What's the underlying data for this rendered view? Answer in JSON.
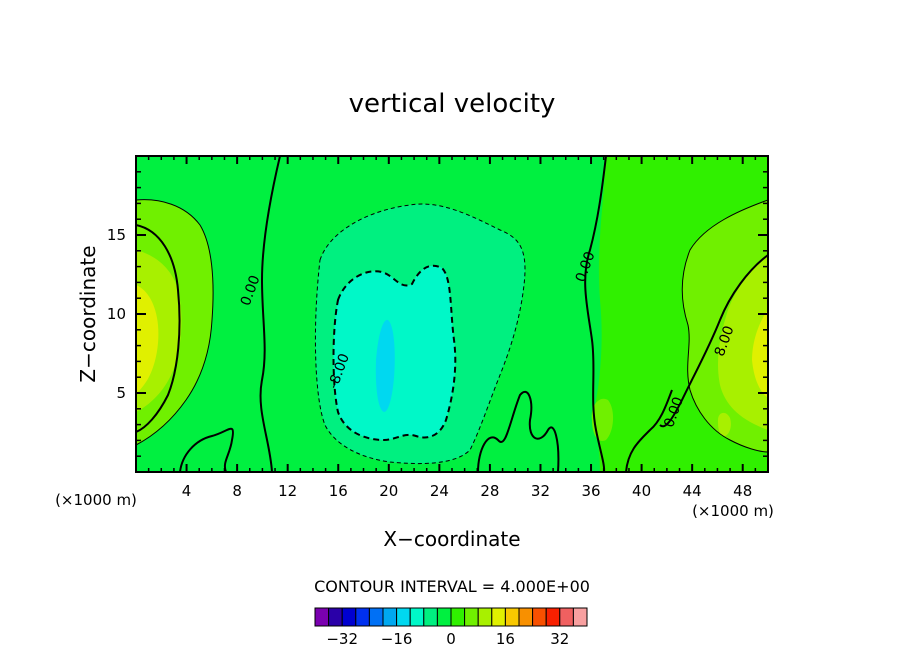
{
  "chart_data": {
    "type": "heatmap",
    "title": "vertical velocity",
    "xlabel": "X−coordinate",
    "ylabel": "Z−coordinate",
    "x_unit_left": "(×1000 m)",
    "x_unit_right": "(×1000 m)",
    "xlim": [
      0,
      50
    ],
    "ylim": [
      0,
      20
    ],
    "x_ticks": [
      4,
      8,
      12,
      16,
      20,
      24,
      28,
      32,
      36,
      40,
      44,
      48
    ],
    "y_ticks": [
      5,
      10,
      15
    ],
    "contour_interval_text": "CONTOUR INTERVAL = 4.000E+00",
    "contour_labels": [
      {
        "text": "0.00",
        "x": 9.0,
        "y": 11.5
      },
      {
        "text": "0.00",
        "x": 35.5,
        "y": 13.0
      },
      {
        "text": "-8.00",
        "x": 16.0,
        "y": 6.4
      },
      {
        "text": "8.00",
        "x": 46.5,
        "y": 8.3
      },
      {
        "text": "0.00",
        "x": 42.5,
        "y": 3.8
      }
    ],
    "colorbar": {
      "levels": [
        -36,
        -32,
        -28,
        -24,
        -20,
        -16,
        -12,
        -8,
        -4,
        0,
        4,
        8,
        12,
        16,
        20,
        24,
        28,
        32,
        36
      ],
      "colors": [
        "#7a00b0",
        "#2a00a8",
        "#0000d0",
        "#0030f0",
        "#0070f5",
        "#00a8f0",
        "#00d8f0",
        "#00f8c8",
        "#00f080",
        "#00f040",
        "#30f000",
        "#70f000",
        "#a8f000",
        "#e0f000",
        "#f8c800",
        "#f89000",
        "#f85000",
        "#f82000",
        "#f06060",
        "#f8a0a0"
      ],
      "tick_labels": [
        "−32",
        "−16",
        "0",
        "16",
        "32"
      ],
      "tick_values": [
        -32,
        -16,
        0,
        16,
        32
      ]
    }
  }
}
